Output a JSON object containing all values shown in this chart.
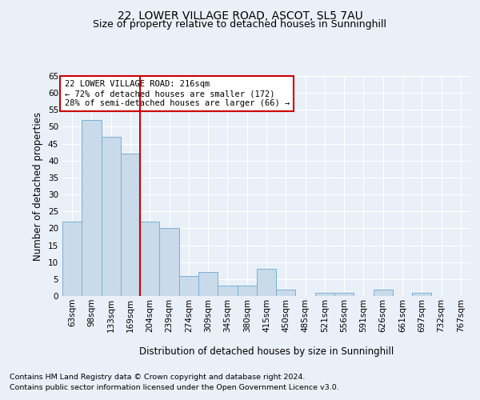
{
  "title": "22, LOWER VILLAGE ROAD, ASCOT, SL5 7AU",
  "subtitle": "Size of property relative to detached houses in Sunninghill",
  "xlabel": "Distribution of detached houses by size in Sunninghill",
  "ylabel": "Number of detached properties",
  "categories": [
    "63sqm",
    "98sqm",
    "133sqm",
    "169sqm",
    "204sqm",
    "239sqm",
    "274sqm",
    "309sqm",
    "345sqm",
    "380sqm",
    "415sqm",
    "450sqm",
    "485sqm",
    "521sqm",
    "556sqm",
    "591sqm",
    "626sqm",
    "661sqm",
    "697sqm",
    "732sqm",
    "767sqm"
  ],
  "values": [
    22,
    52,
    47,
    42,
    22,
    20,
    6,
    7,
    3,
    3,
    8,
    2,
    0,
    1,
    1,
    0,
    2,
    0,
    1,
    0,
    0
  ],
  "bar_color": "#c9daea",
  "bar_edge_color": "#7bafd4",
  "vline_x_index": 4,
  "vline_color": "#cc0000",
  "annotation_text": "22 LOWER VILLAGE ROAD: 216sqm\n← 72% of detached houses are smaller (172)\n28% of semi-detached houses are larger (66) →",
  "annotation_box_color": "white",
  "annotation_box_edge_color": "#cc0000",
  "ylim": [
    0,
    65
  ],
  "yticks": [
    0,
    5,
    10,
    15,
    20,
    25,
    30,
    35,
    40,
    45,
    50,
    55,
    60,
    65
  ],
  "bg_color": "#eaf0f8",
  "plot_bg_color": "#eaf0f8",
  "footer_line1": "Contains HM Land Registry data © Crown copyright and database right 2024.",
  "footer_line2": "Contains public sector information licensed under the Open Government Licence v3.0.",
  "title_fontsize": 10,
  "subtitle_fontsize": 9,
  "axis_label_fontsize": 8.5,
  "tick_fontsize": 7.5,
  "annotation_fontsize": 7.5,
  "footer_fontsize": 6.8
}
